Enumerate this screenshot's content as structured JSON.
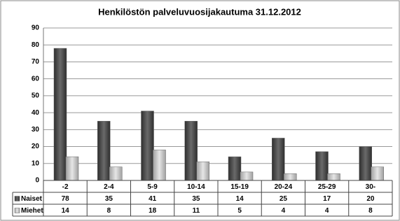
{
  "chart_data": {
    "type": "bar",
    "title": "Henkilöstön palveluvuosijakautuma 31.12.2012",
    "categories": [
      "-2",
      "2-4",
      "5-9",
      "10-14",
      "15-19",
      "20-24",
      "25-29",
      "30-"
    ],
    "series": [
      {
        "name": "Naiset",
        "color": "#4d4d4d",
        "values": [
          78,
          35,
          41,
          35,
          14,
          25,
          17,
          20
        ]
      },
      {
        "name": "Miehet",
        "color": "#c8c8c8",
        "values": [
          14,
          8,
          18,
          11,
          5,
          4,
          4,
          8
        ]
      }
    ],
    "ylim": [
      0,
      90
    ],
    "yticks": [
      0,
      10,
      20,
      30,
      40,
      50,
      60,
      70,
      80,
      90
    ],
    "grid": true
  }
}
